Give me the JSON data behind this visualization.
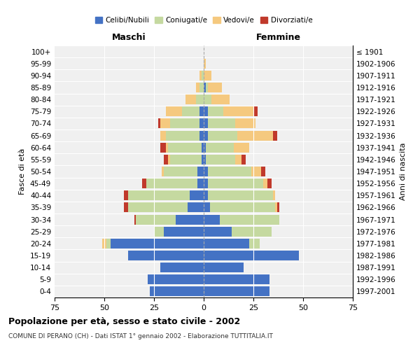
{
  "age_groups": [
    "0-4",
    "5-9",
    "10-14",
    "15-19",
    "20-24",
    "25-29",
    "30-34",
    "35-39",
    "40-44",
    "45-49",
    "50-54",
    "55-59",
    "60-64",
    "65-69",
    "70-74",
    "75-79",
    "80-84",
    "85-89",
    "90-94",
    "95-99",
    "100+"
  ],
  "birth_years": [
    "1997-2001",
    "1992-1996",
    "1987-1991",
    "1982-1986",
    "1977-1981",
    "1972-1976",
    "1967-1971",
    "1962-1966",
    "1957-1961",
    "1952-1956",
    "1947-1951",
    "1942-1946",
    "1937-1941",
    "1932-1936",
    "1927-1931",
    "1922-1926",
    "1917-1921",
    "1912-1916",
    "1907-1911",
    "1902-1906",
    "≤ 1901"
  ],
  "male_celibe": [
    27,
    28,
    22,
    38,
    47,
    20,
    14,
    8,
    7,
    3,
    3,
    1,
    1,
    2,
    2,
    2,
    0,
    0,
    0,
    0,
    0
  ],
  "male_coniugato": [
    0,
    0,
    0,
    0,
    2,
    5,
    20,
    30,
    31,
    26,
    17,
    16,
    17,
    17,
    15,
    9,
    4,
    2,
    1,
    0,
    0
  ],
  "male_vedovo": [
    0,
    0,
    0,
    0,
    2,
    0,
    0,
    0,
    0,
    0,
    1,
    1,
    1,
    3,
    5,
    8,
    5,
    2,
    1,
    0,
    0
  ],
  "male_divorziato": [
    0,
    0,
    0,
    0,
    0,
    0,
    1,
    2,
    2,
    2,
    0,
    2,
    3,
    0,
    1,
    0,
    0,
    0,
    0,
    0,
    0
  ],
  "female_celibe": [
    33,
    33,
    20,
    48,
    23,
    14,
    8,
    3,
    2,
    2,
    2,
    1,
    1,
    2,
    2,
    2,
    0,
    1,
    0,
    0,
    0
  ],
  "female_coniugata": [
    0,
    0,
    0,
    0,
    5,
    20,
    30,
    33,
    33,
    28,
    22,
    15,
    14,
    15,
    14,
    8,
    4,
    1,
    0,
    0,
    0
  ],
  "female_vedova": [
    0,
    0,
    0,
    0,
    0,
    0,
    0,
    1,
    1,
    2,
    5,
    3,
    8,
    18,
    10,
    15,
    9,
    7,
    4,
    1,
    0
  ],
  "female_divorziata": [
    0,
    0,
    0,
    0,
    0,
    0,
    0,
    1,
    0,
    2,
    2,
    2,
    0,
    2,
    0,
    2,
    0,
    0,
    0,
    0,
    0
  ],
  "color_celibe": "#4472c4",
  "color_coniugato": "#c5d9a0",
  "color_vedovo": "#f5c97f",
  "color_divorziato": "#c0392b",
  "xlim": 75,
  "title": "Popolazione per età, sesso e stato civile - 2002",
  "subtitle": "COMUNE DI PERANO (CH) - Dati ISTAT 1° gennaio 2002 - Elaborazione TUTTITALIA.IT",
  "ylabel_left": "Fasce di età",
  "ylabel_right": "Anni di nascita",
  "xlabel_left": "Maschi",
  "xlabel_right": "Femmine",
  "legend_labels": [
    "Celibi/Nubili",
    "Coniugati/e",
    "Vedovi/e",
    "Divorziati/e"
  ],
  "bg_color": "#f0f0f0"
}
